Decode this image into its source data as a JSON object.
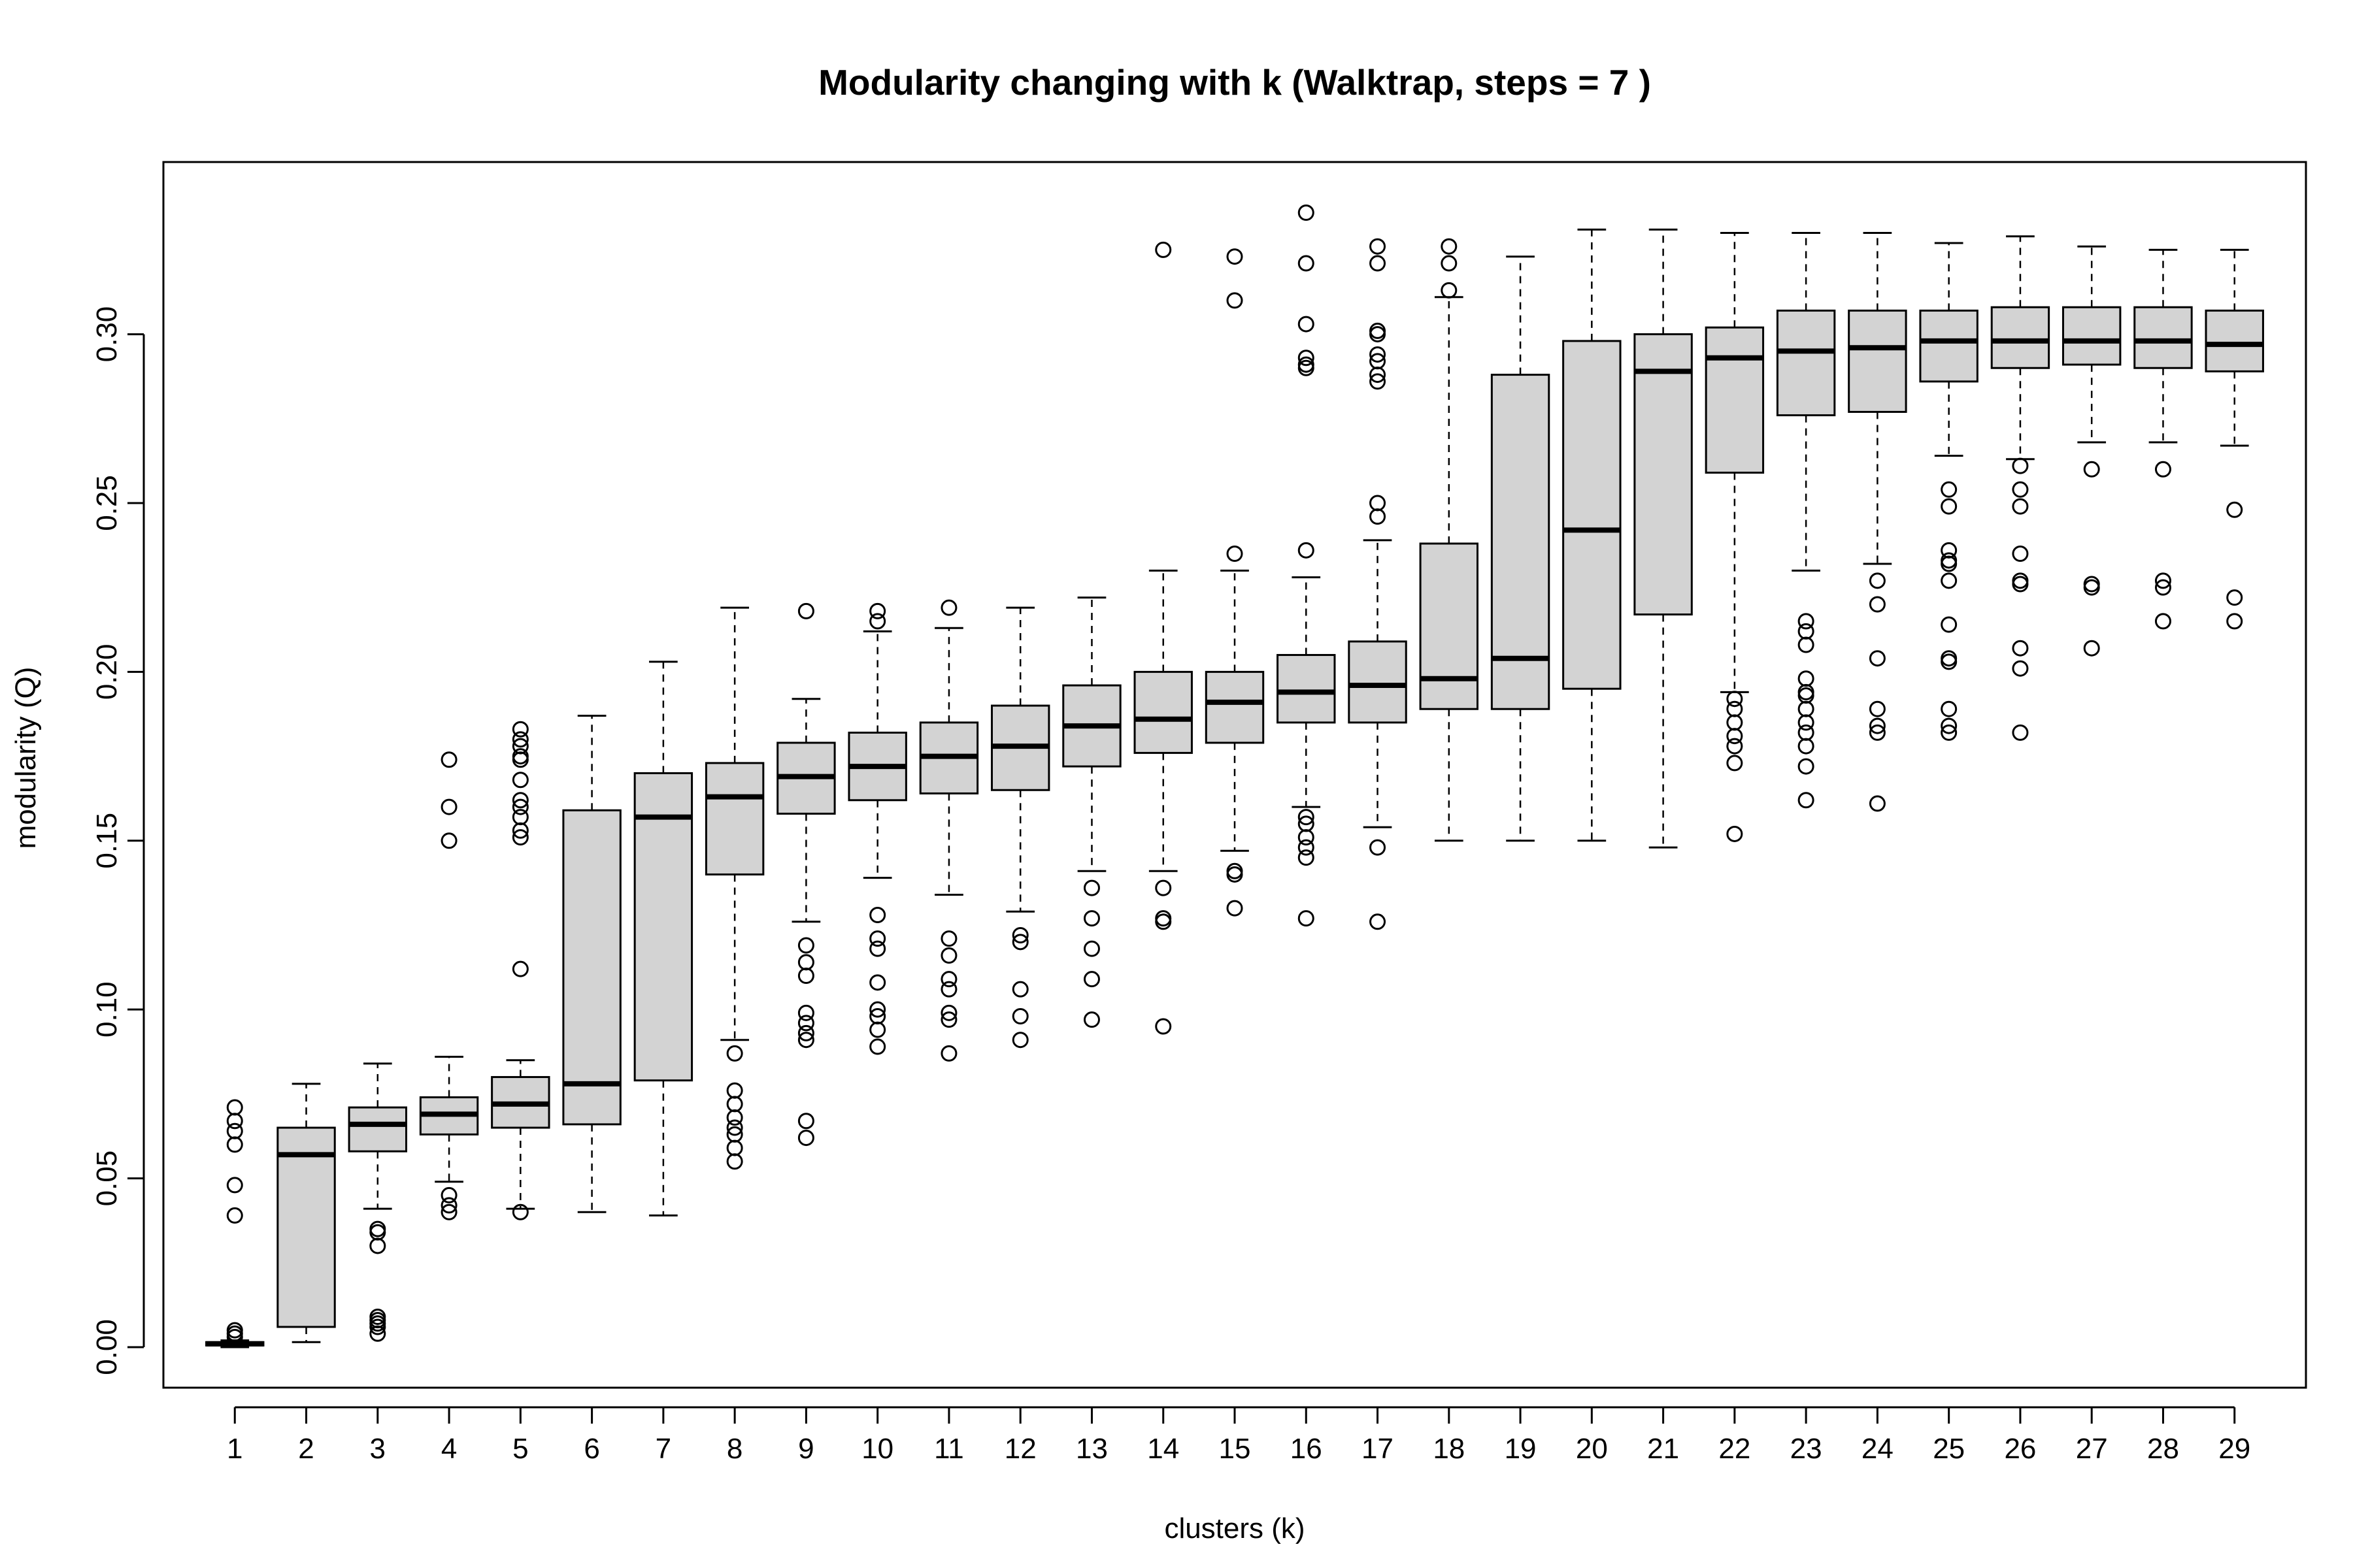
{
  "chart_data": {
    "type": "boxplot",
    "title": "Modularity changing with k (Walktrap, steps =  7 )",
    "xlabel": "clusters (k)",
    "ylabel": "modularity (Q)",
    "ylim": [
      -0.012,
      0.351
    ],
    "xlim": [
      0,
      30
    ],
    "grid": false,
    "yticks": [
      "0.00",
      "0.05",
      "0.10",
      "0.15",
      "0.20",
      "0.25",
      "0.30"
    ],
    "ytick_values": [
      0.0,
      0.05,
      0.1,
      0.15,
      0.2,
      0.25,
      0.3
    ],
    "categories": [
      "1",
      "2",
      "3",
      "4",
      "5",
      "6",
      "7",
      "8",
      "9",
      "10",
      "11",
      "12",
      "13",
      "14",
      "15",
      "16",
      "17",
      "18",
      "19",
      "20",
      "21",
      "22",
      "23",
      "24",
      "25",
      "26",
      "27",
      "28",
      "29"
    ],
    "colors": {
      "box_fill": "#d3d3d3",
      "stroke": "#000000"
    },
    "boxes": [
      {
        "k": "1",
        "whisker_low": 0.0,
        "q1": 0.0005,
        "median": 0.001,
        "q3": 0.0015,
        "whisker_high": 0.002,
        "outliers": [
          0.071,
          0.067,
          0.064,
          0.06,
          0.048,
          0.039,
          0.005,
          0.004,
          0.003
        ]
      },
      {
        "k": "2",
        "whisker_low": 0.0015,
        "q1": 0.006,
        "median": 0.057,
        "q3": 0.065,
        "whisker_high": 0.078,
        "outliers": []
      },
      {
        "k": "3",
        "whisker_low": 0.041,
        "q1": 0.058,
        "median": 0.066,
        "q3": 0.071,
        "whisker_high": 0.084,
        "outliers": [
          0.035,
          0.034,
          0.03,
          0.009,
          0.008,
          0.007,
          0.006,
          0.004
        ]
      },
      {
        "k": "4",
        "whisker_low": 0.049,
        "q1": 0.063,
        "median": 0.069,
        "q3": 0.074,
        "whisker_high": 0.086,
        "outliers": [
          0.174,
          0.16,
          0.15,
          0.045,
          0.042,
          0.04
        ]
      },
      {
        "k": "5",
        "whisker_low": 0.041,
        "q1": 0.065,
        "median": 0.072,
        "q3": 0.08,
        "whisker_high": 0.085,
        "outliers": [
          0.183,
          0.18,
          0.178,
          0.175,
          0.174,
          0.168,
          0.162,
          0.16,
          0.157,
          0.153,
          0.151,
          0.112,
          0.04
        ]
      },
      {
        "k": "6",
        "whisker_low": 0.04,
        "q1": 0.066,
        "median": 0.078,
        "q3": 0.159,
        "whisker_high": 0.187,
        "outliers": []
      },
      {
        "k": "7",
        "whisker_low": 0.039,
        "q1": 0.079,
        "median": 0.157,
        "q3": 0.17,
        "whisker_high": 0.203,
        "outliers": []
      },
      {
        "k": "8",
        "whisker_low": 0.091,
        "q1": 0.14,
        "median": 0.163,
        "q3": 0.173,
        "whisker_high": 0.219,
        "outliers": [
          0.087,
          0.076,
          0.072,
          0.068,
          0.065,
          0.063,
          0.059,
          0.055
        ]
      },
      {
        "k": "9",
        "whisker_low": 0.126,
        "q1": 0.158,
        "median": 0.169,
        "q3": 0.179,
        "whisker_high": 0.192,
        "outliers": [
          0.218,
          0.119,
          0.114,
          0.11,
          0.099,
          0.096,
          0.093,
          0.091,
          0.067,
          0.062
        ]
      },
      {
        "k": "10",
        "whisker_low": 0.139,
        "q1": 0.162,
        "median": 0.172,
        "q3": 0.182,
        "whisker_high": 0.212,
        "outliers": [
          0.218,
          0.215,
          0.128,
          0.121,
          0.118,
          0.108,
          0.1,
          0.098,
          0.094,
          0.089
        ]
      },
      {
        "k": "11",
        "whisker_low": 0.134,
        "q1": 0.164,
        "median": 0.175,
        "q3": 0.185,
        "whisker_high": 0.213,
        "outliers": [
          0.219,
          0.121,
          0.116,
          0.109,
          0.106,
          0.099,
          0.097,
          0.087
        ]
      },
      {
        "k": "12",
        "whisker_low": 0.129,
        "q1": 0.165,
        "median": 0.178,
        "q3": 0.19,
        "whisker_high": 0.219,
        "outliers": [
          0.122,
          0.12,
          0.106,
          0.098,
          0.091
        ]
      },
      {
        "k": "13",
        "whisker_low": 0.141,
        "q1": 0.172,
        "median": 0.184,
        "q3": 0.196,
        "whisker_high": 0.222,
        "outliers": [
          0.136,
          0.127,
          0.118,
          0.109,
          0.097
        ]
      },
      {
        "k": "14",
        "whisker_low": 0.141,
        "q1": 0.176,
        "median": 0.186,
        "q3": 0.2,
        "whisker_high": 0.23,
        "outliers": [
          0.325,
          0.136,
          0.127,
          0.126,
          0.095
        ]
      },
      {
        "k": "15",
        "whisker_low": 0.147,
        "q1": 0.179,
        "median": 0.191,
        "q3": 0.2,
        "whisker_high": 0.23,
        "outliers": [
          0.323,
          0.31,
          0.235,
          0.141,
          0.14,
          0.13
        ]
      },
      {
        "k": "16",
        "whisker_low": 0.16,
        "q1": 0.185,
        "median": 0.194,
        "q3": 0.205,
        "whisker_high": 0.228,
        "outliers": [
          0.336,
          0.321,
          0.303,
          0.293,
          0.291,
          0.29,
          0.236,
          0.157,
          0.155,
          0.151,
          0.148,
          0.145,
          0.127
        ]
      },
      {
        "k": "17",
        "whisker_low": 0.154,
        "q1": 0.185,
        "median": 0.196,
        "q3": 0.209,
        "whisker_high": 0.239,
        "outliers": [
          0.326,
          0.321,
          0.301,
          0.3,
          0.294,
          0.292,
          0.288,
          0.286,
          0.25,
          0.246,
          0.148,
          0.126
        ]
      },
      {
        "k": "18",
        "whisker_low": 0.15,
        "q1": 0.189,
        "median": 0.198,
        "q3": 0.238,
        "whisker_high": 0.311,
        "outliers": [
          0.326,
          0.321,
          0.313
        ]
      },
      {
        "k": "19",
        "whisker_low": 0.15,
        "q1": 0.189,
        "median": 0.204,
        "q3": 0.288,
        "whisker_high": 0.323,
        "outliers": []
      },
      {
        "k": "20",
        "whisker_low": 0.15,
        "q1": 0.195,
        "median": 0.242,
        "q3": 0.298,
        "whisker_high": 0.331,
        "outliers": []
      },
      {
        "k": "21",
        "whisker_low": 0.148,
        "q1": 0.217,
        "median": 0.289,
        "q3": 0.3,
        "whisker_high": 0.331,
        "outliers": []
      },
      {
        "k": "22",
        "whisker_low": 0.194,
        "q1": 0.259,
        "median": 0.293,
        "q3": 0.302,
        "whisker_high": 0.33,
        "outliers": [
          0.192,
          0.189,
          0.185,
          0.181,
          0.178,
          0.173,
          0.152
        ]
      },
      {
        "k": "23",
        "whisker_low": 0.23,
        "q1": 0.276,
        "median": 0.295,
        "q3": 0.307,
        "whisker_high": 0.33,
        "outliers": [
          0.215,
          0.212,
          0.208,
          0.198,
          0.194,
          0.193,
          0.189,
          0.185,
          0.182,
          0.178,
          0.172,
          0.162
        ]
      },
      {
        "k": "24",
        "whisker_low": 0.232,
        "q1": 0.277,
        "median": 0.296,
        "q3": 0.307,
        "whisker_high": 0.33,
        "outliers": [
          0.227,
          0.22,
          0.204,
          0.189,
          0.184,
          0.182,
          0.161
        ]
      },
      {
        "k": "25",
        "whisker_low": 0.264,
        "q1": 0.286,
        "median": 0.298,
        "q3": 0.307,
        "whisker_high": 0.327,
        "outliers": [
          0.254,
          0.249,
          0.236,
          0.233,
          0.232,
          0.227,
          0.214,
          0.204,
          0.203,
          0.189,
          0.184,
          0.182
        ]
      },
      {
        "k": "26",
        "whisker_low": 0.263,
        "q1": 0.29,
        "median": 0.298,
        "q3": 0.308,
        "whisker_high": 0.329,
        "outliers": [
          0.261,
          0.254,
          0.249,
          0.235,
          0.227,
          0.226,
          0.207,
          0.201,
          0.182
        ]
      },
      {
        "k": "27",
        "whisker_low": 0.268,
        "q1": 0.291,
        "median": 0.298,
        "q3": 0.308,
        "whisker_high": 0.326,
        "outliers": [
          0.26,
          0.226,
          0.225,
          0.207
        ]
      },
      {
        "k": "28",
        "whisker_low": 0.268,
        "q1": 0.29,
        "median": 0.298,
        "q3": 0.308,
        "whisker_high": 0.325,
        "outliers": [
          0.26,
          0.227,
          0.225,
          0.215
        ]
      },
      {
        "k": "29",
        "whisker_low": 0.267,
        "q1": 0.289,
        "median": 0.297,
        "q3": 0.307,
        "whisker_high": 0.325,
        "outliers": [
          0.248,
          0.222,
          0.215
        ]
      }
    ]
  }
}
